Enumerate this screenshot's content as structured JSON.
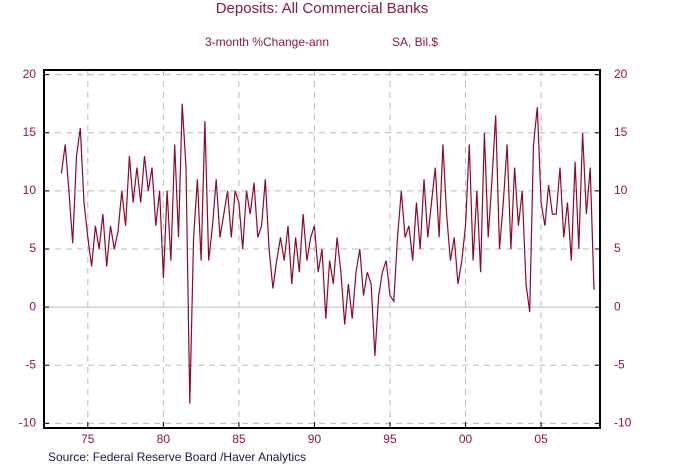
{
  "chart_data": {
    "type": "line",
    "title": "Deposits: All Commercial Banks",
    "subtitle": "3-month %Change-ann",
    "units": "SA, Bil.$",
    "source": "Source:  Federal Reserve Board /Haver Analytics",
    "color": "#8b0a2a",
    "grid": true,
    "xlim": [
      1972.1,
      2008.9
    ],
    "xticks": [
      {
        "value": 1975,
        "label": "75"
      },
      {
        "value": 1980,
        "label": "80"
      },
      {
        "value": 1985,
        "label": "85"
      },
      {
        "value": 1990,
        "label": "90"
      },
      {
        "value": 1995,
        "label": "95"
      },
      {
        "value": 2000,
        "label": "00"
      },
      {
        "value": 2005,
        "label": "05"
      }
    ],
    "ylim": [
      -10.4,
      20.4
    ],
    "yticks": [
      -10,
      -5,
      0,
      5,
      10,
      15,
      20
    ],
    "x": [
      1973.25,
      1973.5,
      1973.75,
      1974,
      1974.25,
      1974.5,
      1974.75,
      1975,
      1975.25,
      1975.5,
      1975.75,
      1976,
      1976.25,
      1976.5,
      1976.75,
      1977,
      1977.25,
      1977.5,
      1977.75,
      1978,
      1978.25,
      1978.5,
      1978.75,
      1979,
      1979.25,
      1979.5,
      1979.75,
      1980,
      1980.25,
      1980.5,
      1980.75,
      1981,
      1981.25,
      1981.5,
      1981.75,
      1982,
      1982.25,
      1982.5,
      1982.75,
      1983,
      1983.25,
      1983.5,
      1983.75,
      1984,
      1984.25,
      1984.5,
      1984.75,
      1985,
      1985.25,
      1985.5,
      1985.75,
      1986,
      1986.25,
      1986.5,
      1986.75,
      1987,
      1987.25,
      1987.5,
      1987.75,
      1988,
      1988.25,
      1988.5,
      1988.75,
      1989,
      1989.25,
      1989.5,
      1989.75,
      1990,
      1990.25,
      1990.5,
      1990.75,
      1991,
      1991.25,
      1991.5,
      1991.75,
      1992,
      1992.25,
      1992.5,
      1992.75,
      1993,
      1993.25,
      1993.5,
      1993.75,
      1994,
      1994.25,
      1994.5,
      1994.75,
      1995,
      1995.25,
      1995.5,
      1995.75,
      1996,
      1996.25,
      1996.5,
      1996.75,
      1997,
      1997.25,
      1997.5,
      1997.75,
      1998,
      1998.25,
      1998.5,
      1998.75,
      1999,
      1999.25,
      1999.5,
      1999.75,
      2000,
      2000.25,
      2000.5,
      2000.75,
      2001,
      2001.25,
      2001.5,
      2001.75,
      2002,
      2002.25,
      2002.5,
      2002.75,
      2003,
      2003.25,
      2003.5,
      2003.75,
      2004,
      2004.25,
      2004.5,
      2004.75,
      2005,
      2005.25,
      2005.5,
      2005.75,
      2006,
      2006.25,
      2006.5,
      2006.75,
      2007,
      2007.25,
      2007.5,
      2007.75,
      2008,
      2008.25,
      2008.5
    ],
    "values": [
      11.5,
      14,
      10,
      5.5,
      13,
      15.4,
      9,
      6,
      3.5,
      7,
      5,
      8,
      3.5,
      7,
      5,
      6.5,
      10,
      7,
      13,
      9,
      12,
      9,
      13,
      10,
      12,
      7,
      10,
      2.5,
      10,
      4,
      14,
      6,
      17.5,
      12,
      -8.3,
      6,
      11,
      4,
      16,
      4,
      7,
      11,
      6,
      8,
      10,
      6,
      10,
      9,
      5,
      10,
      8,
      10.7,
      6,
      7,
      11,
      5,
      1.6,
      4,
      6,
      4,
      7,
      2,
      6,
      3,
      8,
      4,
      6,
      7,
      3,
      5,
      -1,
      4,
      2,
      6,
      3,
      -1.5,
      2,
      -1,
      3,
      5,
      1,
      3,
      2,
      -4.2,
      1,
      3,
      4,
      1,
      0.5,
      6,
      10,
      6,
      7,
      4,
      9,
      5,
      11,
      6,
      9,
      12,
      6,
      14,
      8,
      4,
      6,
      2,
      4,
      7,
      14,
      4,
      10,
      3,
      15,
      6,
      11,
      16.5,
      5,
      9,
      14,
      5,
      12,
      7,
      10,
      2,
      -0.4,
      14,
      17.2,
      9,
      7,
      10.5,
      8,
      8,
      12,
      6,
      9,
      4,
      12.5,
      5,
      15,
      8,
      12,
      1.5
    ]
  }
}
